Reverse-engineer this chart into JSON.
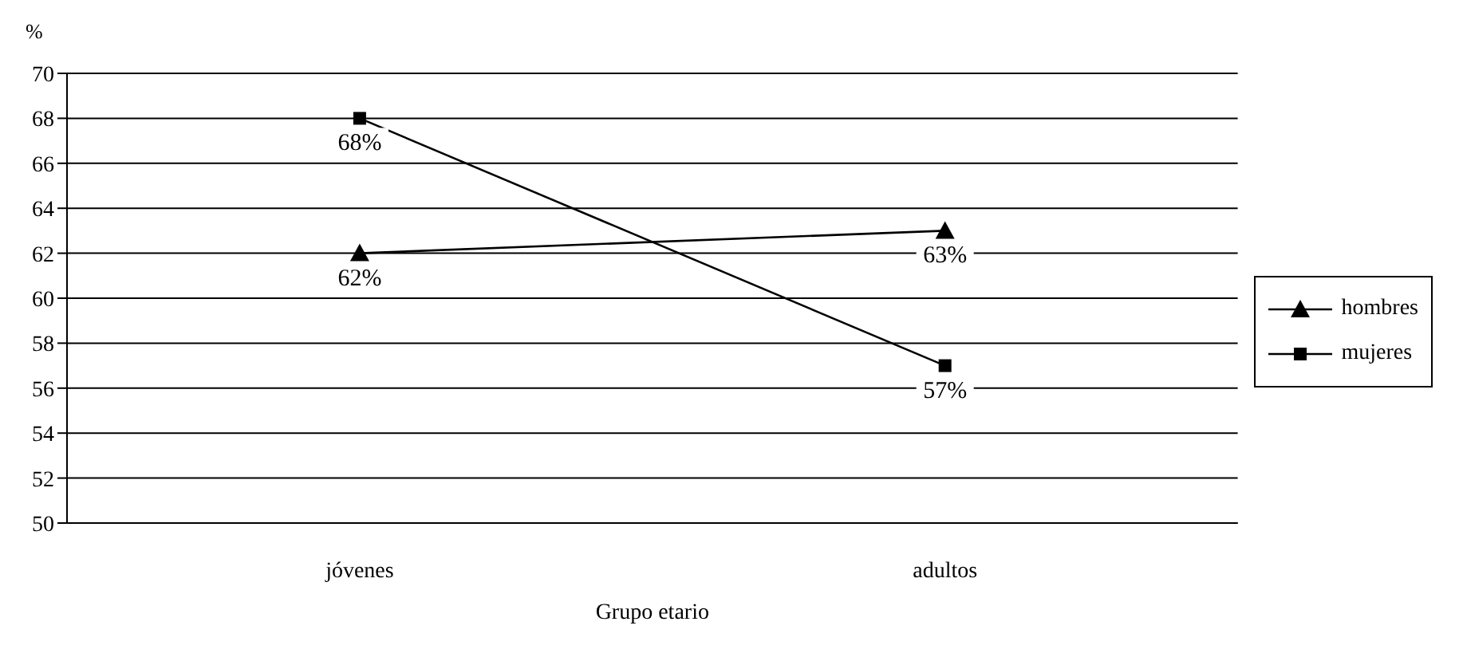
{
  "chart_data": {
    "type": "line",
    "ylabel": "%",
    "xlabel": "Grupo etario",
    "categories": [
      "jóvenes",
      "adultos"
    ],
    "series": [
      {
        "name": "hombres",
        "color": "#000000",
        "marker": "triangle",
        "values": [
          62,
          63
        ],
        "value_labels": [
          "62%",
          "63%"
        ]
      },
      {
        "name": "mujeres",
        "color": "#000000",
        "marker": "square",
        "values": [
          68,
          57
        ],
        "value_labels": [
          "68%",
          "57%"
        ]
      }
    ],
    "ylim": [
      50,
      70
    ],
    "yticks": [
      50,
      52,
      54,
      56,
      58,
      60,
      62,
      64,
      66,
      68,
      70
    ],
    "grid": "y",
    "legend": "right",
    "line_style": "solid"
  }
}
